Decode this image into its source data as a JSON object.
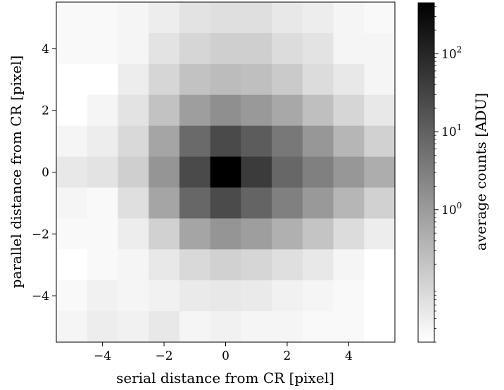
{
  "chart_data": {
    "type": "heatmap",
    "xlabel": "serial distance from CR [pixel]",
    "ylabel": "parallel distance from CR [pixel]",
    "xlim": [
      -5.5,
      5.5
    ],
    "ylim": [
      -5.5,
      5.5
    ],
    "x_ticks": [
      -4,
      -2,
      0,
      2,
      4
    ],
    "y_ticks": [
      -4,
      -2,
      0,
      2,
      4
    ],
    "x_tick_labels": [
      "−4",
      "−2",
      "0",
      "2",
      "4"
    ],
    "y_tick_labels": [
      "−4",
      "−2",
      "0",
      "2",
      "4"
    ],
    "x": [
      -5,
      -4,
      -3,
      -2,
      -1,
      0,
      1,
      2,
      3,
      4,
      5
    ],
    "y": [
      5,
      4,
      3,
      2,
      1,
      0,
      -1,
      -2,
      -3,
      -4,
      -5
    ],
    "values": [
      [
        0.025,
        0.025,
        0.03,
        0.04,
        0.06,
        0.07,
        0.07,
        0.05,
        0.04,
        0.03,
        0.025
      ],
      [
        0.025,
        0.025,
        0.03,
        0.06,
        0.1,
        0.13,
        0.13,
        0.08,
        0.06,
        0.03,
        0.03
      ],
      [
        0.02,
        0.02,
        0.04,
        0.1,
        0.22,
        0.28,
        0.25,
        0.16,
        0.08,
        0.05,
        0.03
      ],
      [
        0.02,
        0.03,
        0.06,
        0.22,
        0.9,
        1.6,
        1.1,
        0.6,
        0.25,
        0.1,
        0.05
      ],
      [
        0.03,
        0.04,
        0.09,
        0.7,
        7,
        25,
        12,
        4,
        1.2,
        0.35,
        0.12
      ],
      [
        0.05,
        0.06,
        0.13,
        1.3,
        25,
        450,
        45,
        8,
        3,
        1.2,
        0.5
      ],
      [
        0.03,
        0.025,
        0.07,
        0.7,
        8,
        24,
        9,
        3,
        1.1,
        0.35,
        0.12
      ],
      [
        0.025,
        0.025,
        0.04,
        0.12,
        0.7,
        1.3,
        0.9,
        0.45,
        0.2,
        0.08,
        0.04
      ],
      [
        0.02,
        0.025,
        0.03,
        0.05,
        0.09,
        0.12,
        0.1,
        0.07,
        0.05,
        0.03,
        0.02
      ],
      [
        0.025,
        0.035,
        0.03,
        0.035,
        0.045,
        0.05,
        0.045,
        0.035,
        0.03,
        0.025,
        0.02
      ],
      [
        0.03,
        0.04,
        0.035,
        0.05,
        0.03,
        0.035,
        0.03,
        0.03,
        0.025,
        0.025,
        0.02
      ]
    ],
    "colorbar": {
      "label": "average counts [ADU]",
      "scale": "log",
      "range": [
        0.02,
        450
      ],
      "ticks": [
        1,
        10,
        100
      ],
      "tick_base": "10",
      "tick_exponents": [
        "0",
        "1",
        "2"
      ],
      "colormap": "greys"
    },
    "grid": false
  }
}
